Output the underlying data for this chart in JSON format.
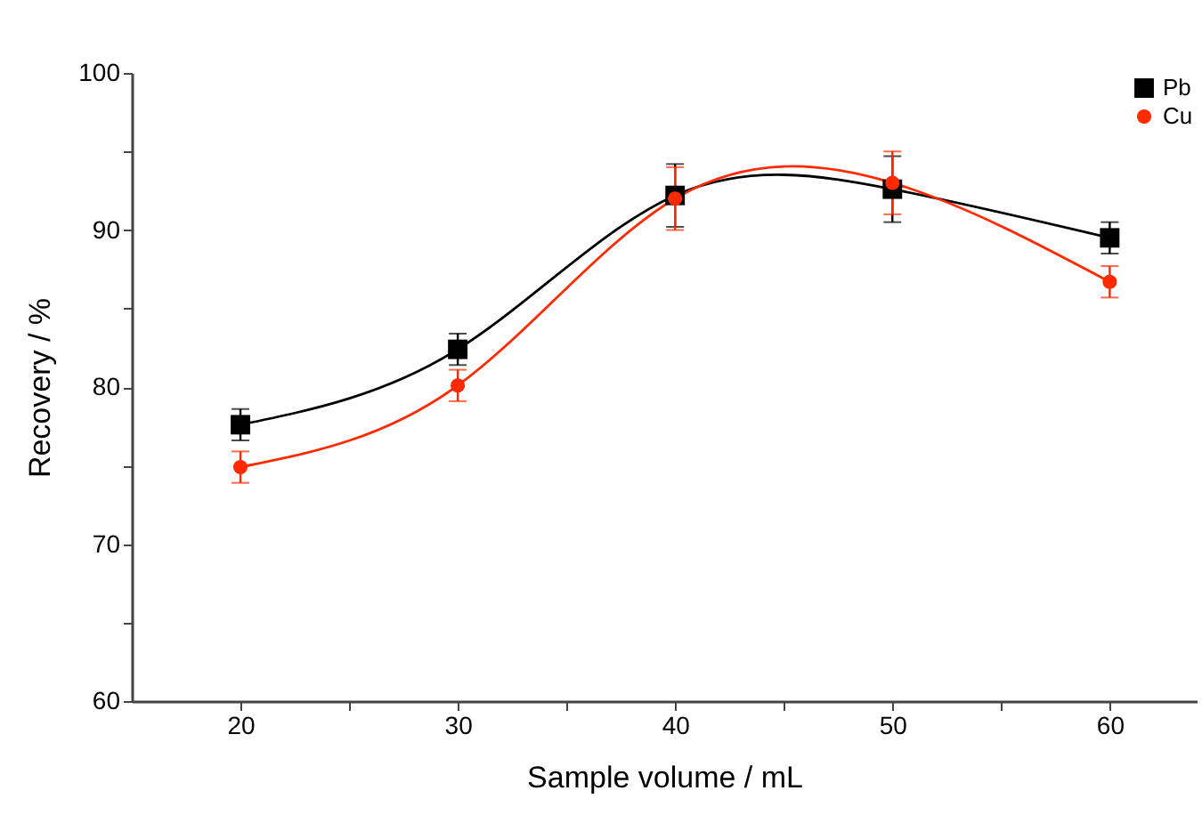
{
  "chart_data": {
    "type": "line",
    "xlabel": "Sample volume / mL",
    "ylabel": "Recovery / %",
    "x": [
      20,
      30,
      40,
      50,
      60
    ],
    "xlim": [
      15,
      64
    ],
    "xticks": [
      20,
      {
        "value": 25,
        "label": null
      },
      30,
      {
        "value": 35,
        "label": null
      },
      40,
      {
        "value": 45,
        "label": null
      },
      50,
      {
        "value": 55,
        "label": null
      },
      60
    ],
    "ylim": [
      60,
      100
    ],
    "yticks": [
      60,
      {
        "value": 65,
        "label": null
      },
      70,
      {
        "value": 75,
        "label": null
      },
      80,
      {
        "value": 85,
        "label": null
      },
      90,
      {
        "value": 95,
        "label": null
      },
      100
    ],
    "legend": "top right",
    "grid": false,
    "series": [
      {
        "name": "Pb",
        "color": "#000000",
        "marker": "square",
        "values": [
          77.6,
          82.4,
          92.2,
          92.6,
          89.5
        ],
        "errors": [
          1.0,
          1.0,
          2.0,
          2.1,
          1.0
        ]
      },
      {
        "name": "Cu",
        "color": "#ff2a00",
        "marker": "circle",
        "values": [
          74.9,
          80.1,
          92.0,
          93.0,
          86.7
        ],
        "errors": [
          1.0,
          1.0,
          2.0,
          2.0,
          1.0
        ]
      }
    ]
  }
}
